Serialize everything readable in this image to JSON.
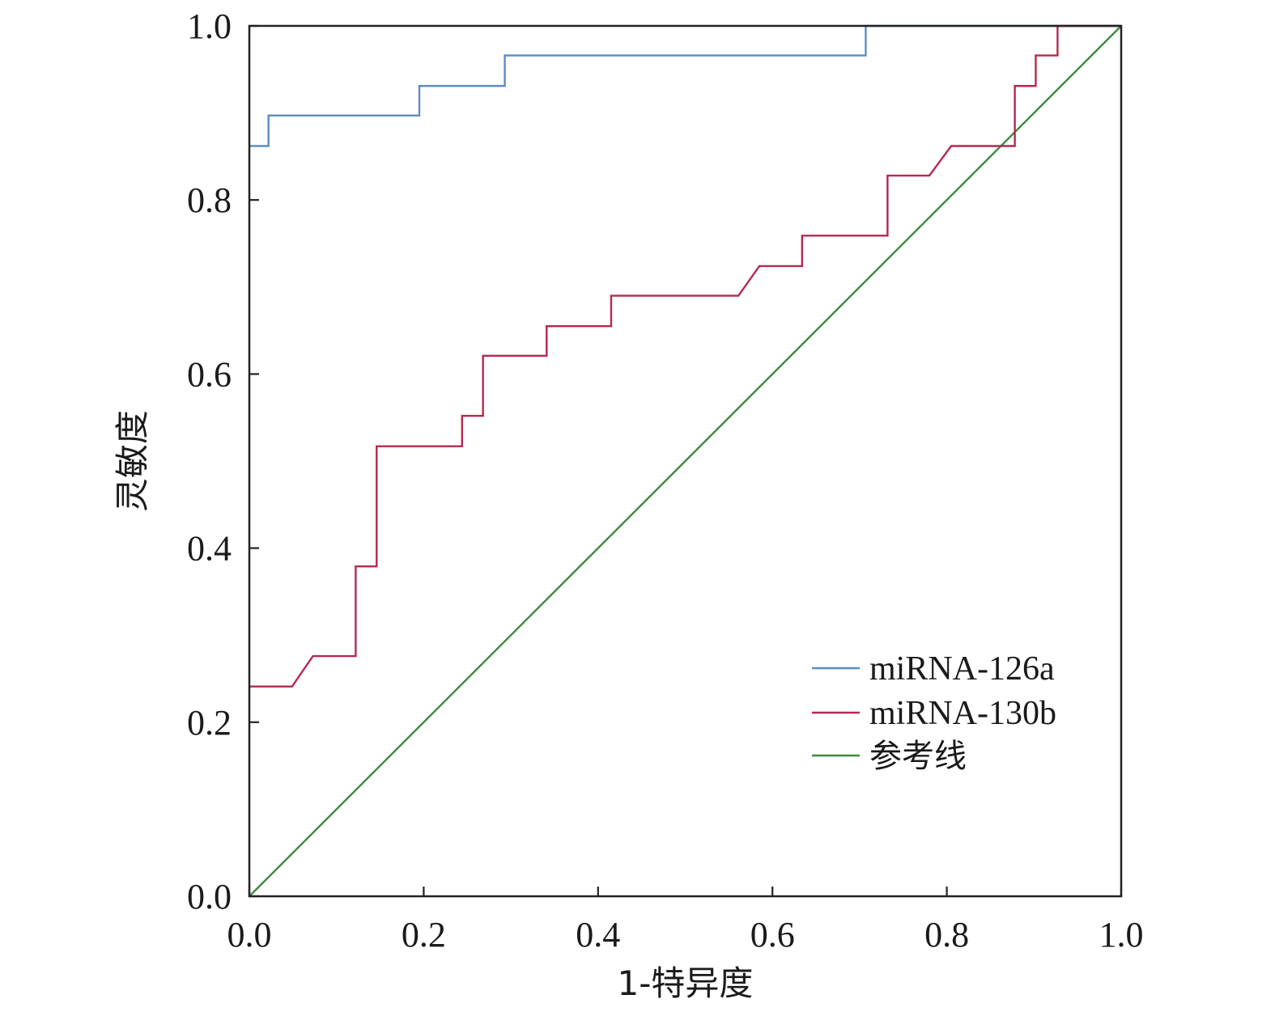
{
  "chart_data": {
    "type": "line",
    "title": "",
    "xlabel": "1-特异度",
    "ylabel": "灵敏度",
    "xlim": [
      0,
      1
    ],
    "ylim": [
      0,
      1
    ],
    "xticks": [
      "0.0",
      "0.2",
      "0.4",
      "0.6",
      "0.8",
      "1.0"
    ],
    "yticks": [
      "0.0",
      "0.2",
      "0.4",
      "0.6",
      "0.8",
      "1.0"
    ],
    "grid": false,
    "legend_position": "bottom-right",
    "series": [
      {
        "name": "miRNA-126a",
        "color": "#5b8dc4",
        "points": [
          [
            0.0,
            0.862
          ],
          [
            0.022,
            0.862
          ],
          [
            0.022,
            0.897
          ],
          [
            0.195,
            0.897
          ],
          [
            0.195,
            0.931
          ],
          [
            0.293,
            0.931
          ],
          [
            0.293,
            0.966
          ],
          [
            0.707,
            0.966
          ],
          [
            0.707,
            1.0
          ],
          [
            1.0,
            1.0
          ]
        ]
      },
      {
        "name": "miRNA-130b",
        "color": "#b5294e",
        "points": [
          [
            0.0,
            0.241
          ],
          [
            0.049,
            0.241
          ],
          [
            0.073,
            0.276
          ],
          [
            0.122,
            0.276
          ],
          [
            0.122,
            0.379
          ],
          [
            0.146,
            0.379
          ],
          [
            0.146,
            0.517
          ],
          [
            0.244,
            0.517
          ],
          [
            0.244,
            0.552
          ],
          [
            0.268,
            0.552
          ],
          [
            0.268,
            0.621
          ],
          [
            0.341,
            0.621
          ],
          [
            0.341,
            0.655
          ],
          [
            0.415,
            0.655
          ],
          [
            0.415,
            0.69
          ],
          [
            0.561,
            0.69
          ],
          [
            0.585,
            0.724
          ],
          [
            0.634,
            0.724
          ],
          [
            0.634,
            0.759
          ],
          [
            0.732,
            0.759
          ],
          [
            0.732,
            0.828
          ],
          [
            0.78,
            0.828
          ],
          [
            0.805,
            0.862
          ],
          [
            0.878,
            0.862
          ],
          [
            0.878,
            0.931
          ],
          [
            0.902,
            0.931
          ],
          [
            0.902,
            0.966
          ],
          [
            0.927,
            0.966
          ],
          [
            0.927,
            1.0
          ],
          [
            1.0,
            1.0
          ]
        ]
      },
      {
        "name": "参考线",
        "color": "#3d8a3d",
        "points": [
          [
            0,
            0
          ],
          [
            1,
            1
          ]
        ]
      }
    ]
  }
}
